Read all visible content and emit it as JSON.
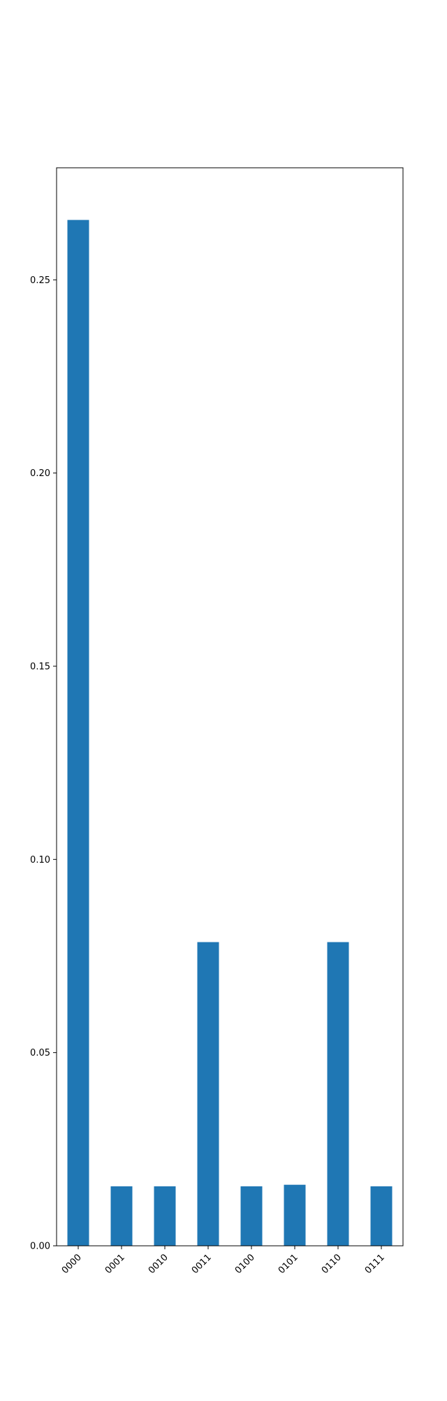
{
  "chart_data": {
    "type": "bar",
    "title": "",
    "xlabel": "",
    "ylabel": "",
    "categories": [
      "0000",
      "0001",
      "0010",
      "0011",
      "0100",
      "0101",
      "0110",
      "0111"
    ],
    "values": [
      0.2655,
      0.0154,
      0.0154,
      0.0786,
      0.0154,
      0.0158,
      0.0786,
      0.0154
    ],
    "ylim": [
      0,
      0.279
    ],
    "yticks": [
      0.0,
      0.05,
      0.1,
      0.15,
      0.2,
      0.25
    ],
    "ytick_labels": [
      "0.00",
      "0.05",
      "0.10",
      "0.15",
      "0.20",
      "0.25"
    ],
    "x_tick_rotation_deg": 45,
    "grid": false,
    "legend": "none",
    "bar_color": "#1f77b4"
  }
}
